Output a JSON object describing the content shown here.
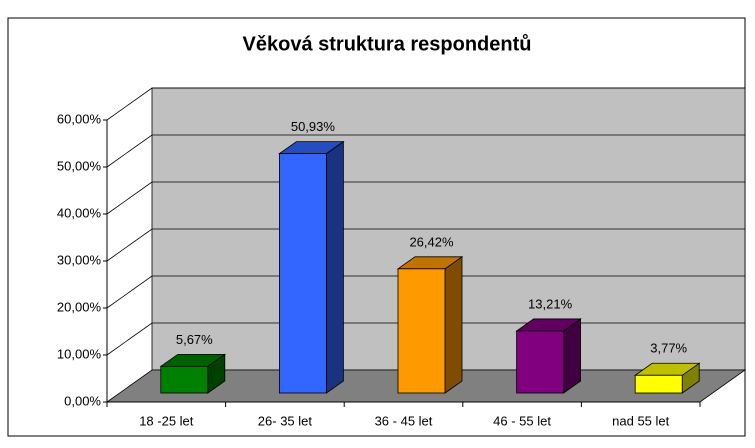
{
  "chart_data": {
    "type": "bar3d",
    "title": "Věková struktura respondentů",
    "categories": [
      "18 -25 let",
      "26- 35 let",
      "36 - 45 let",
      "46 - 55 let",
      "nad 55 let"
    ],
    "values": [
      5.67,
      50.93,
      26.42,
      13.21,
      3.77
    ],
    "value_labels": [
      "5,67%",
      "50,93%",
      "26,42%",
      "13,21%",
      "3,77%"
    ],
    "colors": [
      "#008000",
      "#3366ff",
      "#ff9900",
      "#800080",
      "#ffff00"
    ],
    "ylim": [
      0,
      60
    ],
    "yticks": [
      {
        "value": 0,
        "label": "0,00%"
      },
      {
        "value": 10,
        "label": "10,00%"
      },
      {
        "value": 20,
        "label": "20,00%"
      },
      {
        "value": 30,
        "label": "30,00%"
      },
      {
        "value": 40,
        "label": "40,00%"
      },
      {
        "value": 50,
        "label": "50,00%"
      },
      {
        "value": 60,
        "label": "60,00%"
      }
    ],
    "grid": true
  }
}
